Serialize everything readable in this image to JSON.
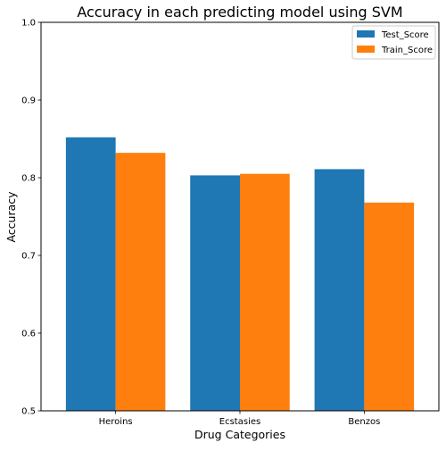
{
  "chart_data": {
    "type": "bar",
    "title": "Accuracy in each predicting model using SVM",
    "xlabel": "Drug Categories",
    "ylabel": "Accuracy",
    "categories": [
      "Heroins",
      "Ecstasies",
      "Benzos"
    ],
    "series": [
      {
        "name": "Test_Score",
        "color": "#1f77b4",
        "values": [
          0.852,
          0.803,
          0.811
        ]
      },
      {
        "name": "Train_Score",
        "color": "#ff7f0e",
        "values": [
          0.832,
          0.805,
          0.768
        ]
      }
    ],
    "ylim": [
      0.5,
      1.0
    ],
    "yticks": [
      "0.5",
      "0.6",
      "0.7",
      "0.8",
      "0.9",
      "1.0"
    ],
    "grid": false,
    "legend_position": "top-right"
  }
}
